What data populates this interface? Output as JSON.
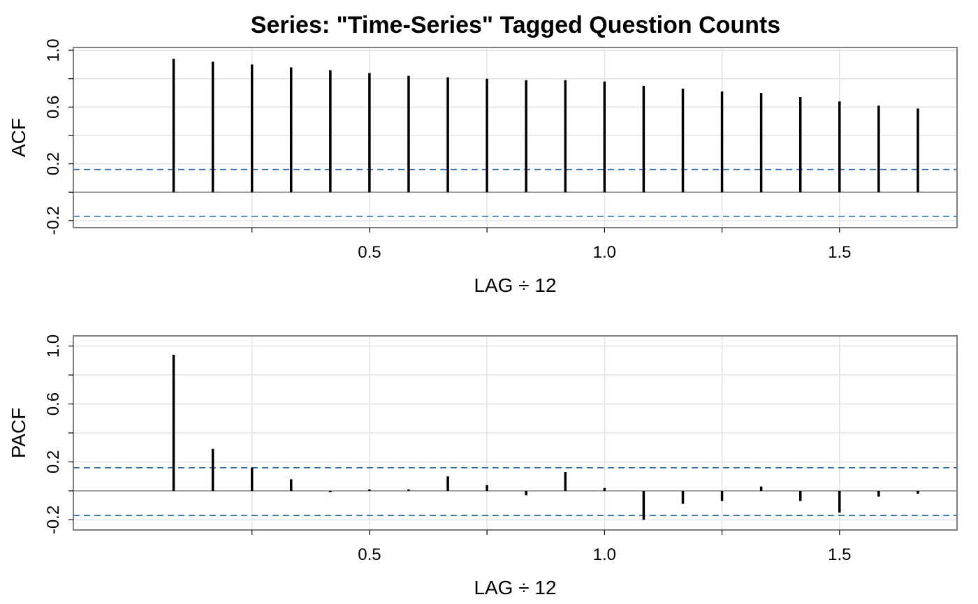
{
  "title": "Series: \"Time-Series\" Tagged Question Counts",
  "chart_data": [
    {
      "type": "bar",
      "panel": "acf",
      "ylabel": "ACF",
      "xlabel": "LAG ÷ 12",
      "xlim": [
        -0.13,
        1.75
      ],
      "ylim": [
        -0.25,
        1.02
      ],
      "xticks": [
        0.5,
        1.0,
        1.5
      ],
      "xtick_labels": [
        "0.5",
        "1.0",
        "1.5"
      ],
      "xminor": [
        0.25,
        0.75,
        1.25
      ],
      "yticks": [
        -0.2,
        0.2,
        0.6,
        1.0
      ],
      "ytick_labels": [
        "-0.2",
        "0.2",
        "0.6",
        "1.0"
      ],
      "grid": true,
      "conf_limits": [
        0.16,
        -0.17
      ],
      "conf_color": "#1f63b5",
      "lags": [
        0.0833,
        0.1667,
        0.25,
        0.3333,
        0.4167,
        0.5,
        0.5833,
        0.6667,
        0.75,
        0.8333,
        0.9167,
        1.0,
        1.0833,
        1.1667,
        1.25,
        1.3333,
        1.4167,
        1.5,
        1.5833,
        1.6667
      ],
      "values": [
        0.94,
        0.92,
        0.9,
        0.88,
        0.86,
        0.84,
        0.82,
        0.81,
        0.8,
        0.79,
        0.79,
        0.78,
        0.75,
        0.73,
        0.71,
        0.7,
        0.67,
        0.64,
        0.61,
        0.59
      ]
    },
    {
      "type": "bar",
      "panel": "pacf",
      "ylabel": "PACF",
      "xlabel": "LAG ÷ 12",
      "xlim": [
        -0.13,
        1.75
      ],
      "ylim": [
        -0.27,
        1.07
      ],
      "xticks": [
        0.5,
        1.0,
        1.5
      ],
      "xtick_labels": [
        "0.5",
        "1.0",
        "1.5"
      ],
      "xminor": [
        0.25,
        0.75,
        1.25
      ],
      "yticks": [
        -0.2,
        0.2,
        0.6,
        1.0
      ],
      "ytick_labels": [
        "-0.2",
        "0.2",
        "0.6",
        "1.0"
      ],
      "grid": true,
      "conf_limits": [
        0.16,
        -0.17
      ],
      "conf_color": "#1f63b5",
      "lags": [
        0.0833,
        0.1667,
        0.25,
        0.3333,
        0.4167,
        0.5,
        0.5833,
        0.6667,
        0.75,
        0.8333,
        0.9167,
        1.0,
        1.0833,
        1.1667,
        1.25,
        1.3333,
        1.4167,
        1.5,
        1.5833,
        1.6667
      ],
      "values": [
        0.94,
        0.29,
        0.16,
        0.08,
        -0.01,
        0.01,
        0.01,
        0.1,
        0.04,
        -0.03,
        0.13,
        0.02,
        -0.2,
        -0.09,
        -0.07,
        0.03,
        -0.07,
        -0.15,
        -0.04,
        -0.02
      ]
    }
  ]
}
